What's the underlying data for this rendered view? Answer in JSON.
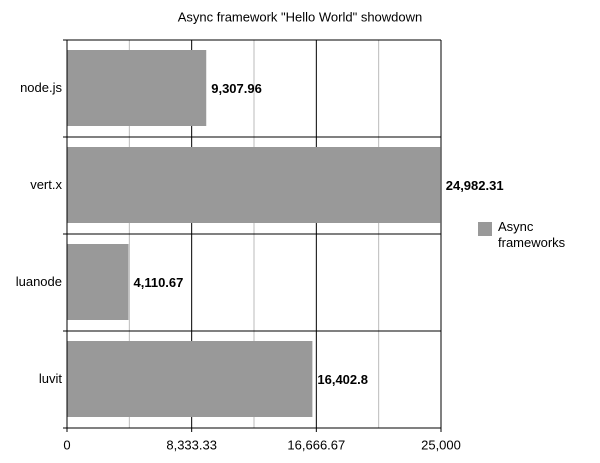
{
  "chart_data": {
    "type": "bar",
    "orientation": "horizontal",
    "title": "Async framework \"Hello World\" showdown",
    "categories": [
      "node.js",
      "vert.x",
      "luanode",
      "luvit"
    ],
    "series": [
      {
        "name": "Async frameworks",
        "color": "#999999",
        "values": [
          9307.96,
          24982.31,
          4110.67,
          16402.8
        ],
        "value_labels": [
          "9,307.96",
          "24,982.31",
          "4,110.67",
          "16,402.8"
        ]
      }
    ],
    "xlim": [
      0,
      25000
    ],
    "xticks": [
      0,
      {
        "value": 8333.33,
        "label": "8,333.33"
      },
      {
        "value": 16666.67,
        "label": "16,666.67"
      },
      {
        "value": 25000,
        "label": "25,000"
      }
    ],
    "minor_xticks": [
      4166.67,
      12500,
      20833.33
    ],
    "grid": true,
    "legend": "right"
  }
}
